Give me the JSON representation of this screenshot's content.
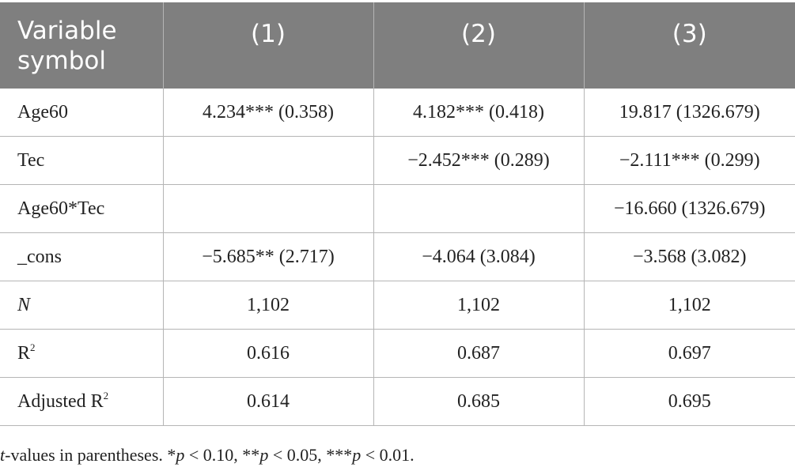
{
  "table": {
    "header": {
      "variable_line1": "Variable",
      "variable_line2": "symbol",
      "col1": "(1)",
      "col2": "(2)",
      "col3": "(3)"
    },
    "rows": [
      {
        "label": "Age60",
        "c1": "4.234*** (0.358)",
        "c2": "4.182*** (0.418)",
        "c3": "19.817 (1326.679)"
      },
      {
        "label": "Tec",
        "c1": "",
        "c2": "−2.452*** (0.289)",
        "c3": "−2.111*** (0.299)"
      },
      {
        "label": "Age60*Tec",
        "c1": "",
        "c2": "",
        "c3": "−16.660 (1326.679)"
      },
      {
        "label": "_cons",
        "c1": "−5.685** (2.717)",
        "c2": "−4.064 (3.084)",
        "c3": "−3.568 (3.082)"
      },
      {
        "label": "N",
        "c1": "1,102",
        "c2": "1,102",
        "c3": "1,102"
      },
      {
        "label": "R",
        "label_sup": "2",
        "c1": "0.616",
        "c2": "0.687",
        "c3": "0.697"
      },
      {
        "label": "Adjusted R",
        "label_sup": "2",
        "c1": "0.614",
        "c2": "0.685",
        "c3": "0.695"
      }
    ]
  },
  "footnote": {
    "t": "t",
    "rest1": "-values in parentheses. *",
    "p1": "p",
    "rest2": " < 0.10, **",
    "p2": "p",
    "rest3": " < 0.05, ***",
    "p3": "p",
    "rest4": " < 0.01."
  }
}
